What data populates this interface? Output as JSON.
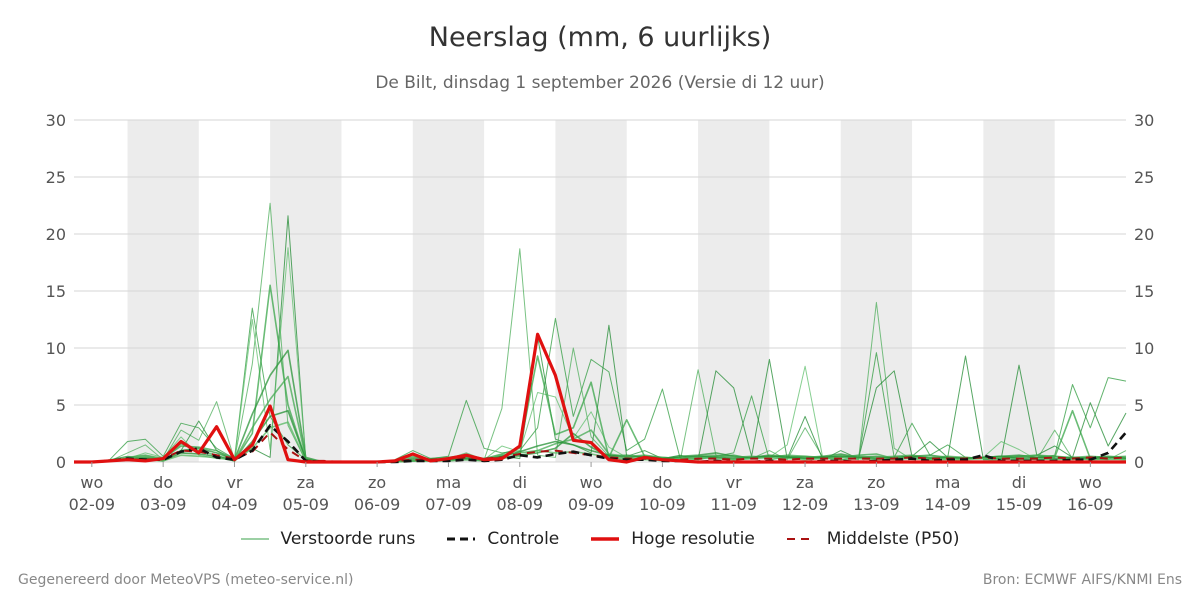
{
  "header": {
    "title": "Neerslag (mm, 6 uurlijks)",
    "subtitle": "De Bilt, dinsdag  1 september 2026 (Versie di 12 uur)"
  },
  "footer": {
    "left": "Gegenereerd door MeteoVPS (meteo-service.nl)",
    "right": "Bron: ECMWF AIFS/KNMI Ens"
  },
  "legend": [
    {
      "label": "Verstoorde runs",
      "color": "#3aa14a",
      "style": "thin-solid"
    },
    {
      "label": "Controle",
      "color": "#111111",
      "style": "dashed"
    },
    {
      "label": "Hoge resolutie",
      "color": "#e01010",
      "style": "thick-solid"
    },
    {
      "label": "Middelste (P50)",
      "color": "#aa1111",
      "style": "dashed"
    }
  ],
  "chart_data": {
    "type": "line",
    "xlabel": "",
    "ylabel": "",
    "ylim": [
      0,
      30
    ],
    "yticks": [
      0,
      5,
      10,
      15,
      20,
      25,
      30
    ],
    "xlim": [
      -0.25,
      14.5
    ],
    "grid": true,
    "weekend_shading": "alternate days shaded grey",
    "x_ticks": [
      {
        "day": "wo",
        "date": "02-09"
      },
      {
        "day": "do",
        "date": "03-09"
      },
      {
        "day": "vr",
        "date": "04-09"
      },
      {
        "day": "za",
        "date": "05-09"
      },
      {
        "day": "zo",
        "date": "06-09"
      },
      {
        "day": "ma",
        "date": "07-09"
      },
      {
        "day": "di",
        "date": "08-09"
      },
      {
        "day": "wo",
        "date": "09-09"
      },
      {
        "day": "do",
        "date": "10-09"
      },
      {
        "day": "vr",
        "date": "11-09"
      },
      {
        "day": "za",
        "date": "12-09"
      },
      {
        "day": "zo",
        "date": "13-09"
      },
      {
        "day": "ma",
        "date": "14-09"
      },
      {
        "day": "di",
        "date": "15-09"
      },
      {
        "day": "wo",
        "date": "16-09"
      }
    ],
    "x": [
      -0.25,
      0,
      0.25,
      0.5,
      0.75,
      1,
      1.25,
      1.5,
      1.75,
      2,
      2.25,
      2.5,
      2.75,
      3,
      3.25,
      3.5,
      3.75,
      4,
      4.25,
      4.5,
      4.75,
      5,
      5.25,
      5.5,
      5.75,
      6,
      6.25,
      6.5,
      6.75,
      7,
      7.25,
      7.5,
      7.75,
      8,
      8.25,
      8.5,
      8.75,
      9,
      9.25,
      9.5,
      9.75,
      10,
      10.25,
      10.5,
      10.75,
      11,
      11.25,
      11.5,
      11.75,
      12,
      12.25,
      12.5,
      12.75,
      13,
      13.25,
      13.5,
      13.75,
      14,
      14.25,
      14.5
    ],
    "series": [
      {
        "name": "Hoge resolutie",
        "values": [
          0,
          0,
          0.1,
          0.2,
          0.1,
          0.3,
          1.8,
          0.8,
          3.1,
          0.2,
          1.5,
          4.9,
          0.2,
          0,
          0,
          0,
          0,
          0,
          0.1,
          0.7,
          0.1,
          0.3,
          0.6,
          0.2,
          0.3,
          1.4,
          11.2,
          7.6,
          1.9,
          1.7,
          0.2,
          0,
          0.4,
          0.2,
          0.1,
          0,
          0,
          0,
          0,
          0,
          0,
          0,
          0,
          0,
          0,
          0,
          0,
          0,
          0,
          0,
          0,
          0,
          0,
          0,
          0,
          0,
          0,
          0,
          0,
          0
        ]
      },
      {
        "name": "Controle",
        "values": [
          0,
          0,
          0.1,
          0.3,
          0.2,
          0.2,
          0.9,
          1.2,
          0.4,
          0.2,
          1.0,
          3.2,
          1.8,
          0.1,
          0,
          0,
          0,
          0,
          0,
          0.1,
          0.1,
          0.1,
          0.2,
          0.1,
          0.2,
          0.6,
          0.4,
          0.7,
          0.9,
          0.6,
          0.3,
          0.2,
          0.2,
          0.1,
          0.1,
          0,
          0.1,
          0,
          0,
          0.1,
          0,
          0,
          0.1,
          0.1,
          0,
          0.1,
          0.2,
          0.3,
          0.1,
          0.2,
          0.2,
          0.6,
          0.1,
          0.1,
          0.1,
          0.1,
          0.2,
          0.2,
          0.8,
          2.6
        ]
      },
      {
        "name": "Middelste (P50)",
        "values": [
          0,
          0,
          0.1,
          0.2,
          0.2,
          0.3,
          1.0,
          0.9,
          0.6,
          0.3,
          0.9,
          2.6,
          1.1,
          0.1,
          0.1,
          0,
          0,
          0,
          0.1,
          0.2,
          0.2,
          0.3,
          0.4,
          0.3,
          0.4,
          0.7,
          0.9,
          1.0,
          0.8,
          0.6,
          0.4,
          0.3,
          0.3,
          0.2,
          0.2,
          0.3,
          0.3,
          0.2,
          0.3,
          0.3,
          0.2,
          0.3,
          0.3,
          0.3,
          0.3,
          0.3,
          0.3,
          0.4,
          0.3,
          0.3,
          0.3,
          0.4,
          0.3,
          0.3,
          0.3,
          0.4,
          0.3,
          0.4,
          0.3,
          0.4
        ]
      }
    ],
    "ensemble": {
      "name": "Verstoorde runs",
      "members": [
        [
          0,
          0,
          0.2,
          1.8,
          2.0,
          0.5,
          3.4,
          3.0,
          1.2,
          0.3,
          13.5,
          4.0,
          1.5,
          0.2,
          0,
          0,
          0,
          0,
          0.2,
          1.0,
          0.3,
          0.5,
          5.4,
          1.2,
          0.8,
          1.0,
          3.0,
          12.6,
          4.0,
          9.0,
          7.9,
          1.0,
          2.0,
          6.4,
          0.3,
          0.2,
          0.5,
          0.8,
          5.8,
          0.2,
          0.4,
          0.3,
          0.5,
          0.2,
          0.3,
          9.6,
          0.4,
          3.4,
          0.6,
          1.5,
          0.4,
          0.3,
          0.3,
          0.5,
          0.4,
          0.6,
          6.8,
          3.0,
          7.4,
          7.1
        ],
        [
          0,
          0,
          0.1,
          0.8,
          1.5,
          0.2,
          2.8,
          1.9,
          5.3,
          0.2,
          8.6,
          22.7,
          3.2,
          0.1,
          0,
          0,
          0,
          0,
          0.1,
          0.5,
          0.1,
          0.3,
          0.8,
          0.2,
          4.7,
          18.7,
          0.6,
          0.4,
          10.0,
          2.2,
          0.5,
          0.1,
          0.2,
          0.1,
          0.1,
          8.1,
          0.6,
          0.2,
          0.3,
          1.0,
          0.2,
          3.0,
          0.4,
          0.5,
          0.2,
          14.0,
          1.2,
          0.2,
          0.3,
          0.2,
          0.1,
          0.1,
          0.2,
          0.3,
          0.2,
          2.8,
          0.3,
          0.2,
          0.2,
          1.0
        ],
        [
          0,
          0,
          0.2,
          0.5,
          0.3,
          0.1,
          1.0,
          3.6,
          1.0,
          0.3,
          1.2,
          0.4,
          21.6,
          0.2,
          0,
          0,
          0,
          0,
          0,
          0.3,
          0.2,
          0.1,
          0.2,
          0.1,
          0.5,
          0.3,
          11.0,
          2.0,
          1.5,
          0.8,
          12.0,
          0.5,
          1.0,
          0.3,
          0.6,
          0.2,
          8.0,
          6.5,
          0.5,
          9.0,
          0.3,
          4.0,
          0.2,
          1.0,
          0.3,
          6.5,
          8.0,
          0.5,
          1.8,
          0.4,
          9.3,
          0.2,
          0.3,
          8.5,
          0.6,
          1.4,
          0.4,
          5.2,
          1.4,
          4.3
        ],
        [
          0,
          0,
          0.1,
          0.3,
          0.8,
          0.4,
          2.2,
          0.6,
          0.3,
          0.2,
          12.5,
          1.1,
          18.8,
          0.3,
          0,
          0,
          0,
          0,
          0,
          0.2,
          0.1,
          0.2,
          0.3,
          0.2,
          1.4,
          0.9,
          6.1,
          5.7,
          2.1,
          4.4,
          1.3,
          0.4,
          0.2,
          0.1,
          0.2,
          0.3,
          0.4,
          0.2,
          0.3,
          0.4,
          1.5,
          8.4,
          0.3,
          0.2,
          0.4,
          0.3,
          0.2,
          0.3,
          0.2,
          0.1,
          0.3,
          0.4,
          1.8,
          1.1,
          0.2,
          0.3,
          0.2,
          0.3,
          0.2,
          0.2
        ],
        [
          0,
          0,
          0.1,
          0.4,
          0.6,
          0.3,
          1.4,
          1.3,
          1.0,
          0.1,
          2.5,
          15.5,
          5.0,
          0.2,
          0,
          0,
          0,
          0,
          0,
          0.4,
          0.3,
          0.4,
          0.6,
          0.3,
          0.7,
          1.2,
          9.3,
          2.4,
          3.0,
          7.0,
          0.4,
          3.7,
          0.5,
          0.4,
          0.3,
          0.4,
          0.5,
          0.6,
          0.3,
          0.5,
          0.4,
          0.5,
          0.3,
          0.4,
          0.6,
          0.7,
          0.3,
          0.5,
          0.4,
          0.3,
          0.4,
          0.3,
          0.4,
          0.5,
          0.6,
          0.4,
          4.5,
          0.3,
          0.4,
          0.3
        ],
        [
          0,
          0,
          0.1,
          0.2,
          0.4,
          0.2,
          1.0,
          1.2,
          0.8,
          0.2,
          4.2,
          7.6,
          9.8,
          0.4,
          0,
          0,
          0,
          0,
          0,
          0.1,
          0.2,
          0.2,
          0.4,
          0.3,
          0.4,
          0.6,
          0.8,
          1.2,
          2.5,
          1.3,
          0.5,
          0.6,
          0.4,
          0.3,
          0.5,
          0.6,
          0.8,
          0.5,
          0.4,
          0.6,
          0.5,
          0.4,
          0.5,
          0.7,
          0.4,
          0.5,
          0.3,
          0.5,
          0.6,
          0.4,
          0.3,
          0.4,
          0.5,
          0.6,
          0.4,
          0.5,
          0.3,
          0.4,
          0.5,
          0.4
        ],
        [
          0,
          0,
          0.1,
          0.3,
          0.5,
          0.2,
          1.6,
          1.0,
          0.6,
          0.1,
          3.0,
          5.5,
          7.5,
          0.3,
          0,
          0,
          0,
          0,
          0,
          0.2,
          0.1,
          0.3,
          0.5,
          0.2,
          0.6,
          0.8,
          1.0,
          1.6,
          2.0,
          2.8,
          0.7,
          0.5,
          0.6,
          0.4,
          0.3,
          0.5,
          0.6,
          0.4,
          0.5,
          0.4,
          0.6,
          0.5,
          0.4,
          0.6,
          0.5,
          0.4,
          0.5,
          0.6,
          0.4,
          0.5,
          0.4,
          0.3,
          0.5,
          0.4,
          0.6,
          0.5,
          0.4,
          0.5,
          0.4,
          0.5
        ],
        [
          0,
          0,
          0.1,
          0.2,
          0.3,
          0.1,
          0.8,
          0.7,
          0.5,
          0.1,
          1.8,
          4.0,
          4.5,
          0.2,
          0,
          0,
          0,
          0,
          0,
          0.1,
          0.1,
          0.2,
          0.3,
          0.2,
          0.5,
          0.9,
          1.4,
          1.8,
          1.5,
          1.0,
          0.6,
          0.4,
          0.5,
          0.3,
          0.4,
          0.5,
          0.4,
          0.3,
          0.4,
          0.5,
          0.4,
          0.3,
          0.4,
          0.5,
          0.4,
          0.3,
          0.4,
          0.5,
          0.3,
          0.4,
          0.3,
          0.4,
          0.5,
          0.3,
          0.4,
          0.3,
          0.4,
          0.3,
          0.4,
          0.3
        ],
        [
          0,
          0,
          0.1,
          0.2,
          0.2,
          0.1,
          0.6,
          0.5,
          0.4,
          0.1,
          1.2,
          3.0,
          3.5,
          0.1,
          0,
          0,
          0,
          0,
          0,
          0.1,
          0.1,
          0.1,
          0.2,
          0.1,
          0.3,
          0.5,
          1.0,
          0.8,
          0.9,
          0.7,
          0.4,
          0.3,
          0.3,
          0.2,
          0.3,
          0.4,
          0.3,
          0.2,
          0.3,
          0.4,
          0.3,
          0.2,
          0.3,
          0.4,
          0.3,
          0.2,
          0.3,
          0.4,
          0.2,
          0.3,
          0.2,
          0.3,
          0.4,
          0.2,
          0.3,
          0.2,
          0.3,
          0.2,
          0.3,
          0.2
        ]
      ]
    }
  }
}
